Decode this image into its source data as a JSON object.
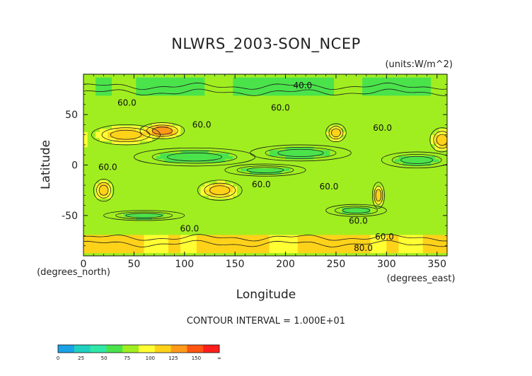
{
  "chart_data": {
    "type": "heatmap",
    "title": "NLWRS_2003-SON_NCEP",
    "units_label": "(units:W/m^2)",
    "xlabel": "Longitude",
    "ylabel": "Latitude",
    "x_unit_label": "(degrees_east)",
    "y_unit_label": "(degrees_north)",
    "xlim": [
      0,
      360
    ],
    "ylim": [
      -90,
      90
    ],
    "x_ticks": [
      0,
      50,
      100,
      150,
      200,
      250,
      300,
      350
    ],
    "y_ticks": [
      50,
      0,
      -50
    ],
    "contour_interval_text": "CONTOUR INTERVAL = 1.000E+01",
    "contour_labels": [
      {
        "text": "40.0",
        "lon": 217,
        "lat": 76
      },
      {
        "text": "60.0",
        "lon": 43,
        "lat": 59
      },
      {
        "text": "60.0",
        "lon": 195,
        "lat": 54
      },
      {
        "text": "60.0",
        "lon": 117,
        "lat": 37
      },
      {
        "text": "60.0",
        "lon": 296,
        "lat": 34
      },
      {
        "text": "60.0",
        "lon": 24,
        "lat": -5
      },
      {
        "text": "60.0",
        "lon": 176,
        "lat": -22
      },
      {
        "text": "60.0",
        "lon": 243,
        "lat": -24
      },
      {
        "text": "60.0",
        "lon": 272,
        "lat": -58
      },
      {
        "text": "60.0",
        "lon": 105,
        "lat": -66
      },
      {
        "text": "60.0",
        "lon": 298,
        "lat": -74
      },
      {
        "text": "80.0",
        "lon": 277,
        "lat": -85
      }
    ],
    "levels": [
      0,
      25,
      50,
      75,
      100,
      125,
      150
    ],
    "colorbar_labels": [
      "0",
      "25",
      "50",
      "75",
      "100",
      "125",
      "150",
      "∞"
    ],
    "colorbar_colors": [
      "#1aa1e6",
      "#1fd0bf",
      "#2ee8a8",
      "#4be34b",
      "#a0ee20",
      "#ffff33",
      "#ffd21a",
      "#ff9a1a",
      "#ff5511",
      "#ff1e1e"
    ],
    "background_color": "#5ee34a",
    "region_features": [
      {
        "kind": "band",
        "lat_min": 70,
        "lat_max": 88,
        "lon_min": 0,
        "lon_max": 360,
        "value": 45
      },
      {
        "kind": "band",
        "lat_min": -88,
        "lat_max": -70,
        "lon_min": 0,
        "lon_max": 360,
        "value": 105
      },
      {
        "kind": "blob",
        "lon": 42,
        "lat": 30,
        "rlon": 34,
        "rlat": 10,
        "value": 112
      },
      {
        "kind": "blob",
        "lon": 78,
        "lat": 34,
        "rlon": 22,
        "rlat": 8,
        "value": 140
      },
      {
        "kind": "blob",
        "lon": 20,
        "lat": -25,
        "rlon": 10,
        "rlat": 11,
        "value": 118
      },
      {
        "kind": "blob",
        "lon": 135,
        "lat": -25,
        "rlon": 22,
        "rlat": 10,
        "value": 122
      },
      {
        "kind": "blob",
        "lon": 250,
        "lat": 32,
        "rlon": 10,
        "rlat": 9,
        "value": 110
      },
      {
        "kind": "blob",
        "lon": 292,
        "lat": -30,
        "rlon": 6,
        "rlat": 13,
        "value": 115
      },
      {
        "kind": "blob",
        "lon": 355,
        "lat": 25,
        "rlon": 12,
        "rlat": 12,
        "value": 112
      },
      {
        "kind": "blob",
        "lon": 110,
        "lat": 8,
        "rlon": 60,
        "rlat": 9,
        "value": 40
      },
      {
        "kind": "blob",
        "lon": 215,
        "lat": 12,
        "rlon": 50,
        "rlat": 8,
        "value": 42
      },
      {
        "kind": "blob",
        "lon": 330,
        "lat": 5,
        "rlon": 35,
        "rlat": 8,
        "value": 43
      },
      {
        "kind": "blob",
        "lon": 270,
        "lat": -45,
        "rlon": 30,
        "rlat": 6,
        "value": 44
      },
      {
        "kind": "blob",
        "lon": 180,
        "lat": -5,
        "rlon": 40,
        "rlat": 6,
        "value": 45
      },
      {
        "kind": "blob",
        "lon": 60,
        "lat": -50,
        "rlon": 40,
        "rlat": 5,
        "value": 45
      }
    ]
  }
}
